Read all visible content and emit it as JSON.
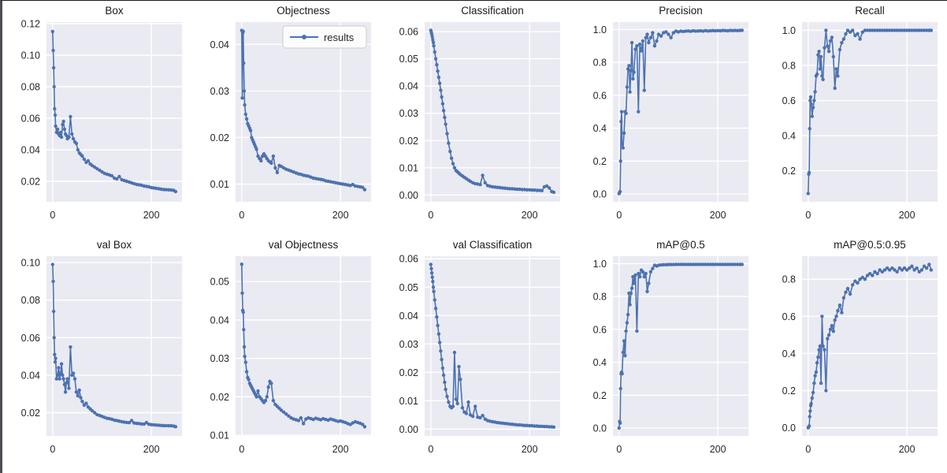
{
  "figure": {
    "line_color": "#4c72b0",
    "axes_background": "#eaeaf2",
    "grid_color": "#ffffff",
    "text_color": "#262626",
    "legend_label": "results",
    "legend_background": "#ffffff",
    "legend_border": "#cccccc"
  },
  "chart_data": {
    "type": "line",
    "layout": {
      "rows": 2,
      "cols": 5,
      "grid": true,
      "legend_position": "upper right of Objectness subplot"
    },
    "series_name": "results",
    "xlim": [
      -12.5,
      262
    ],
    "xticks": [
      0,
      200
    ],
    "x": [
      0,
      1,
      2,
      3,
      4,
      5,
      6,
      8,
      10,
      12,
      14,
      16,
      18,
      20,
      22,
      24,
      26,
      28,
      30,
      33,
      36,
      39,
      42,
      45,
      48,
      51,
      54,
      57,
      60,
      64,
      68,
      72,
      76,
      80,
      85,
      90,
      95,
      100,
      105,
      110,
      115,
      120,
      125,
      130,
      135,
      140,
      145,
      150,
      155,
      160,
      165,
      170,
      175,
      180,
      185,
      190,
      195,
      200,
      205,
      210,
      215,
      220,
      225,
      230,
      235,
      240,
      245,
      249
    ],
    "charts": [
      {
        "title": "Box",
        "ytick_decimals": 2,
        "ylim": [
          0.007,
          0.121
        ],
        "yticks": [
          0.02,
          0.04,
          0.06,
          0.08,
          0.1,
          0.12
        ],
        "legend": false,
        "y": [
          0.115,
          0.103,
          0.092,
          0.08,
          0.066,
          0.062,
          0.055,
          0.051,
          0.053,
          0.05,
          0.049,
          0.051,
          0.048,
          0.056,
          0.058,
          0.053,
          0.05,
          0.049,
          0.047,
          0.048,
          0.061,
          0.05,
          0.047,
          0.045,
          0.044,
          0.04,
          0.038,
          0.037,
          0.036,
          0.034,
          0.032,
          0.033,
          0.031,
          0.03,
          0.029,
          0.028,
          0.027,
          0.026,
          0.025,
          0.0245,
          0.024,
          0.0235,
          0.022,
          0.0215,
          0.023,
          0.021,
          0.0205,
          0.02,
          0.0195,
          0.019,
          0.0185,
          0.018,
          0.0178,
          0.0175,
          0.017,
          0.0168,
          0.0165,
          0.016,
          0.0158,
          0.0155,
          0.0153,
          0.015,
          0.0148,
          0.0147,
          0.0146,
          0.0145,
          0.0143,
          0.0135
        ]
      },
      {
        "title": "Objectness",
        "ytick_decimals": 2,
        "ylim": [
          0.0062,
          0.0448
        ],
        "yticks": [
          0.01,
          0.02,
          0.03,
          0.04
        ],
        "legend": true,
        "y": [
          0.043,
          0.0285,
          0.0425,
          0.0428,
          0.036,
          0.03,
          0.027,
          0.025,
          0.024,
          0.023,
          0.0225,
          0.022,
          0.0215,
          0.02,
          0.0195,
          0.019,
          0.0185,
          0.018,
          0.0175,
          0.016,
          0.0155,
          0.015,
          0.016,
          0.0165,
          0.016,
          0.0155,
          0.015,
          0.0148,
          0.0145,
          0.016,
          0.0135,
          0.0125,
          0.014,
          0.0138,
          0.0135,
          0.0132,
          0.013,
          0.0128,
          0.0126,
          0.0124,
          0.0122,
          0.0121,
          0.0119,
          0.0118,
          0.0117,
          0.0115,
          0.0113,
          0.0112,
          0.0111,
          0.011,
          0.0109,
          0.0107,
          0.0106,
          0.0105,
          0.0104,
          0.0103,
          0.0102,
          0.0101,
          0.01,
          0.0099,
          0.0098,
          0.0097,
          0.0099,
          0.0096,
          0.0095,
          0.0094,
          0.0093,
          0.0088
        ]
      },
      {
        "title": "Classification",
        "ytick_decimals": 2,
        "ylim": [
          -0.0025,
          0.0635
        ],
        "yticks": [
          0.0,
          0.01,
          0.02,
          0.03,
          0.04,
          0.05,
          0.06
        ],
        "legend": false,
        "y": [
          0.0605,
          0.0597,
          0.0589,
          0.058,
          0.057,
          0.056,
          0.0548,
          0.0525,
          0.05,
          0.0478,
          0.0455,
          0.0432,
          0.041,
          0.0385,
          0.036,
          0.0335,
          0.031,
          0.0285,
          0.026,
          0.0225,
          0.019,
          0.016,
          0.0135,
          0.0115,
          0.01,
          0.009,
          0.0085,
          0.008,
          0.0075,
          0.007,
          0.0065,
          0.006,
          0.0055,
          0.005,
          0.0045,
          0.0042,
          0.004,
          0.0038,
          0.0072,
          0.0045,
          0.0035,
          0.0032,
          0.003,
          0.0029,
          0.0028,
          0.0027,
          0.0026,
          0.0025,
          0.0024,
          0.0023,
          0.0023,
          0.0022,
          0.0021,
          0.0021,
          0.002,
          0.002,
          0.0019,
          0.0019,
          0.0018,
          0.0018,
          0.0017,
          0.0017,
          0.0016,
          0.003,
          0.0033,
          0.0026,
          0.0013,
          0.001
        ]
      },
      {
        "title": "Precision",
        "ytick_decimals": 1,
        "ylim": [
          -0.048,
          1.045
        ],
        "yticks": [
          0.0,
          0.2,
          0.4,
          0.6,
          0.8,
          1.0
        ],
        "legend": false,
        "y": [
          0.002,
          0.01,
          0.015,
          0.2,
          0.44,
          0.5,
          0.3,
          0.28,
          0.37,
          0.5,
          0.49,
          0.65,
          0.76,
          0.78,
          0.62,
          0.75,
          0.92,
          0.7,
          0.74,
          0.88,
          0.9,
          0.5,
          0.91,
          0.87,
          0.93,
          0.63,
          0.95,
          0.97,
          0.92,
          0.95,
          0.98,
          0.9,
          0.93,
          0.97,
          0.96,
          0.98,
          0.985,
          0.97,
          0.95,
          0.98,
          0.99,
          0.985,
          0.99,
          0.988,
          0.99,
          0.991,
          0.989,
          0.992,
          0.99,
          0.991,
          0.992,
          0.99,
          0.993,
          0.991,
          0.992,
          0.993,
          0.992,
          0.993,
          0.992,
          0.994,
          0.993,
          0.992,
          0.994,
          0.993,
          0.994,
          0.993,
          0.994,
          0.995
        ]
      },
      {
        "title": "Recall",
        "ytick_decimals": 1,
        "ylim": [
          0.023,
          1.047
        ],
        "yticks": [
          0.2,
          0.4,
          0.6,
          0.8,
          1.0
        ],
        "legend": false,
        "y": [
          0.07,
          0.18,
          0.19,
          0.44,
          0.6,
          0.62,
          0.58,
          0.51,
          0.56,
          0.6,
          0.65,
          0.74,
          0.75,
          0.86,
          0.88,
          0.78,
          0.85,
          0.74,
          0.72,
          0.9,
          1.0,
          0.91,
          0.88,
          0.94,
          0.96,
          0.85,
          0.67,
          0.78,
          0.74,
          0.89,
          0.93,
          0.95,
          0.98,
          1.0,
          0.99,
          1.0,
          0.97,
          0.98,
          0.95,
          0.99,
          1.0,
          1.0,
          1.0,
          1.0,
          1.0,
          1.0,
          1.0,
          1.0,
          1.0,
          1.0,
          1.0,
          1.0,
          1.0,
          1.0,
          1.0,
          1.0,
          1.0,
          1.0,
          1.0,
          1.0,
          1.0,
          1.0,
          1.0,
          1.0,
          1.0,
          1.0,
          1.0,
          1.0
        ]
      },
      {
        "title": "val Box",
        "ytick_decimals": 2,
        "ylim": [
          0.0076,
          0.1034
        ],
        "yticks": [
          0.02,
          0.04,
          0.06,
          0.08,
          0.1
        ],
        "legend": false,
        "y": [
          0.099,
          0.09,
          0.074,
          0.06,
          0.051,
          0.047,
          0.049,
          0.038,
          0.04,
          0.044,
          0.038,
          0.041,
          0.046,
          0.04,
          0.038,
          0.035,
          0.031,
          0.036,
          0.038,
          0.033,
          0.055,
          0.04,
          0.041,
          0.038,
          0.031,
          0.029,
          0.032,
          0.028,
          0.026,
          0.024,
          0.025,
          0.023,
          0.022,
          0.021,
          0.02,
          0.019,
          0.0185,
          0.018,
          0.0175,
          0.017,
          0.0168,
          0.0165,
          0.016,
          0.0158,
          0.0155,
          0.0152,
          0.015,
          0.0148,
          0.0147,
          0.0158,
          0.0145,
          0.0143,
          0.0142,
          0.014,
          0.0139,
          0.0147,
          0.0138,
          0.0136,
          0.0135,
          0.0134,
          0.0133,
          0.0132,
          0.0131,
          0.0131,
          0.013,
          0.013,
          0.0129,
          0.0125
        ]
      },
      {
        "title": "val Objectness",
        "ytick_decimals": 2,
        "ylim": [
          0.0098,
          0.0566
        ],
        "yticks": [
          0.01,
          0.02,
          0.03,
          0.04,
          0.05
        ],
        "legend": false,
        "y": [
          0.0545,
          0.047,
          0.0425,
          0.042,
          0.0375,
          0.033,
          0.0305,
          0.029,
          0.0265,
          0.025,
          0.0245,
          0.0235,
          0.023,
          0.0225,
          0.022,
          0.0215,
          0.021,
          0.0205,
          0.02,
          0.0215,
          0.02,
          0.0195,
          0.019,
          0.0185,
          0.019,
          0.02,
          0.0225,
          0.024,
          0.0235,
          0.019,
          0.018,
          0.0175,
          0.017,
          0.0165,
          0.016,
          0.0155,
          0.015,
          0.0145,
          0.0142,
          0.014,
          0.0138,
          0.0145,
          0.013,
          0.0142,
          0.0145,
          0.0143,
          0.0141,
          0.0144,
          0.0142,
          0.014,
          0.0143,
          0.0141,
          0.0139,
          0.0142,
          0.014,
          0.0138,
          0.0136,
          0.0137,
          0.0135,
          0.0133,
          0.013,
          0.0128,
          0.0132,
          0.0135,
          0.0133,
          0.0131,
          0.0128,
          0.0122
        ]
      },
      {
        "title": "val Classification",
        "ytick_decimals": 2,
        "ylim": [
          -0.0024,
          0.0609
        ],
        "yticks": [
          0.0,
          0.01,
          0.02,
          0.03,
          0.04,
          0.05,
          0.06
        ],
        "legend": false,
        "y": [
          0.058,
          0.0565,
          0.055,
          0.0535,
          0.052,
          0.05,
          0.0485,
          0.0455,
          0.0425,
          0.0395,
          0.0365,
          0.0335,
          0.0305,
          0.0275,
          0.0245,
          0.0215,
          0.019,
          0.0165,
          0.014,
          0.0115,
          0.0095,
          0.008,
          0.0075,
          0.008,
          0.027,
          0.0105,
          0.009,
          0.022,
          0.0175,
          0.0075,
          0.006,
          0.0055,
          0.0095,
          0.005,
          0.0045,
          0.008,
          0.0042,
          0.004,
          0.0048,
          0.0035,
          0.003,
          0.0028,
          0.0026,
          0.0025,
          0.0023,
          0.0022,
          0.0021,
          0.002,
          0.0019,
          0.0018,
          0.0017,
          0.0016,
          0.0015,
          0.0015,
          0.0014,
          0.0013,
          0.0013,
          0.0012,
          0.0012,
          0.0011,
          0.0011,
          0.001,
          0.001,
          0.0009,
          0.0009,
          0.0008,
          0.0008,
          0.0007
        ]
      },
      {
        "title": "mAP@0.5",
        "ytick_decimals": 1,
        "ylim": [
          -0.048,
          1.045
        ],
        "yticks": [
          0.0,
          0.2,
          0.4,
          0.6,
          0.8,
          1.0
        ],
        "legend": false,
        "y": [
          0.0,
          0.04,
          0.03,
          0.24,
          0.33,
          0.34,
          0.33,
          0.46,
          0.53,
          0.44,
          0.59,
          0.64,
          0.69,
          0.82,
          0.75,
          0.82,
          0.85,
          0.92,
          0.88,
          0.93,
          0.59,
          0.94,
          0.92,
          0.96,
          0.95,
          0.92,
          0.94,
          0.83,
          0.88,
          0.95,
          0.97,
          0.99,
          0.985,
          0.99,
          0.992,
          0.993,
          0.993,
          0.994,
          0.994,
          0.994,
          0.995,
          0.995,
          0.995,
          0.995,
          0.995,
          0.995,
          0.995,
          0.995,
          0.995,
          0.995,
          0.995,
          0.995,
          0.995,
          0.995,
          0.995,
          0.995,
          0.995,
          0.995,
          0.995,
          0.995,
          0.995,
          0.995,
          0.995,
          0.995,
          0.995,
          0.995,
          0.995,
          0.995
        ]
      },
      {
        "title": "mAP@0.5:0.95",
        "ytick_decimals": 1,
        "ylim": [
          -0.044,
          0.924
        ],
        "yticks": [
          0.0,
          0.2,
          0.4,
          0.6,
          0.8
        ],
        "legend": false,
        "y": [
          0.0,
          0.005,
          0.01,
          0.06,
          0.09,
          0.12,
          0.13,
          0.16,
          0.19,
          0.24,
          0.28,
          0.3,
          0.35,
          0.38,
          0.42,
          0.44,
          0.24,
          0.6,
          0.44,
          0.42,
          0.2,
          0.48,
          0.5,
          0.53,
          0.55,
          0.52,
          0.58,
          0.6,
          0.63,
          0.66,
          0.62,
          0.7,
          0.73,
          0.75,
          0.72,
          0.77,
          0.79,
          0.78,
          0.8,
          0.81,
          0.8,
          0.82,
          0.83,
          0.82,
          0.84,
          0.83,
          0.85,
          0.84,
          0.85,
          0.86,
          0.85,
          0.86,
          0.85,
          0.84,
          0.86,
          0.85,
          0.86,
          0.85,
          0.86,
          0.87,
          0.85,
          0.86,
          0.84,
          0.85,
          0.87,
          0.86,
          0.88,
          0.85
        ]
      }
    ]
  }
}
